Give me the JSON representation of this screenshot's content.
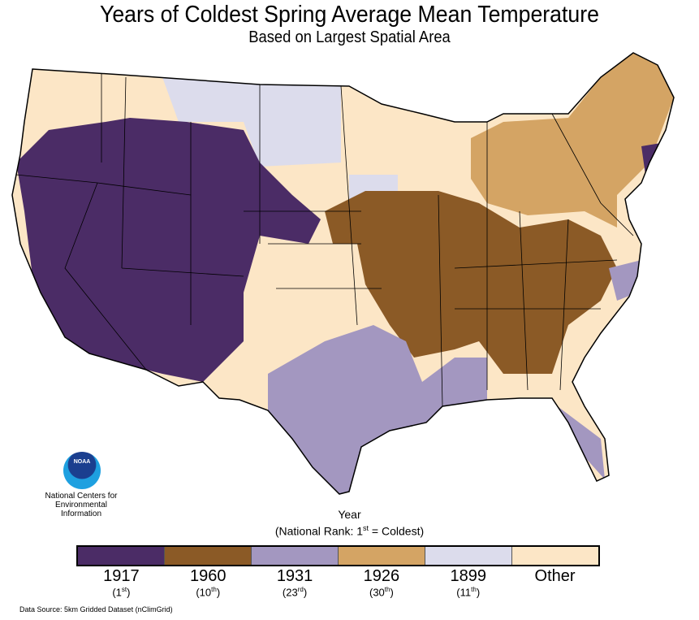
{
  "title": "Years of Coldest Spring Average Mean Temperature",
  "subtitle": "Based on Largest Spatial Area",
  "logo": {
    "text": "NOAA",
    "org_lines": [
      "National Centers for",
      "Environmental",
      "Information"
    ]
  },
  "legend": {
    "title": "Year",
    "subtitle_pre": "(National Rank: 1",
    "subtitle_sup": "st",
    "subtitle_post": " = Coldest)",
    "items": [
      {
        "year": "1917",
        "rank": "1",
        "sup": "st",
        "color": "#4b2c66"
      },
      {
        "year": "1960",
        "rank": "10",
        "sup": "th",
        "color": "#8b5a26"
      },
      {
        "year": "1931",
        "rank": "23",
        "sup": "rd",
        "color": "#a397c0"
      },
      {
        "year": "1926",
        "rank": "30",
        "sup": "th",
        "color": "#d4a464"
      },
      {
        "year": "1899",
        "rank": "11",
        "sup": "th",
        "color": "#dcdcec"
      },
      {
        "year": "Other",
        "rank": null,
        "sup": null,
        "color": "#fce6c6"
      }
    ]
  },
  "source": "Data Source: 5km Gridded Dataset (nClimGrid)"
}
